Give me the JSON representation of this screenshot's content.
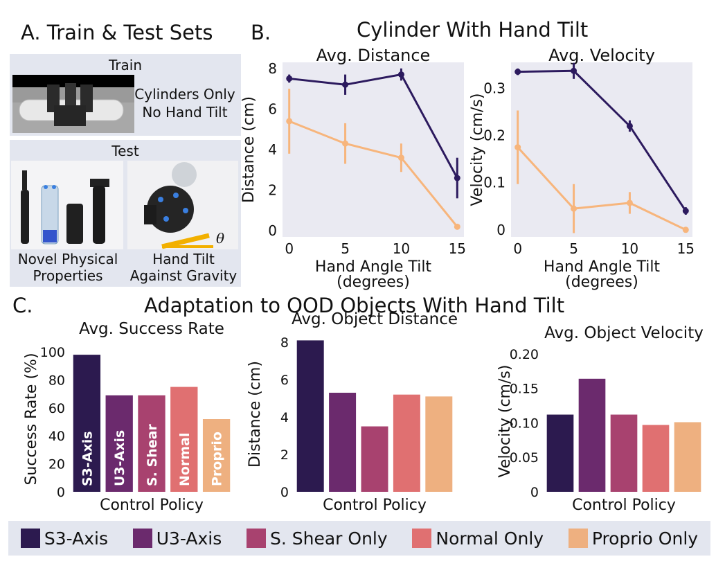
{
  "panelA": {
    "title": "A. Train & Test Sets",
    "train_label": "Train",
    "train_desc_line1": "Cylinders Only",
    "train_desc_line2": "No Hand Tilt",
    "test_label": "Test",
    "novel_line1": "Novel Physical",
    "novel_line2": "Properties",
    "tilt_line1": "Hand Tilt",
    "tilt_line2": "Against Gravity",
    "theta_symbol": "θ"
  },
  "panelB": {
    "label": "B.",
    "title": "Cylinder With Hand Tilt"
  },
  "panelC": {
    "label": "C.",
    "title": "Adaptation to OOD Objects With Hand Tilt"
  },
  "colors": {
    "s3": "#2c1a4f",
    "u3": "#6b2a6d",
    "shear": "#a8426f",
    "normal": "#e07071",
    "proprio": "#eeb080",
    "line_dark": "#2c1a5e",
    "line_light": "#f7b57c",
    "plot_bg": "#eaeaf2"
  },
  "chart_data": [
    {
      "type": "line",
      "title": "Avg. Distance",
      "xlabel": "Hand Angle Tilt\n(degrees)",
      "xlabel_line1": "Hand Angle Tilt",
      "xlabel_line2": "(degrees)",
      "ylabel": "Distance (cm)",
      "x": [
        0,
        5,
        10,
        15
      ],
      "xticks": [
        "0",
        "5",
        "10",
        "15"
      ],
      "yticks": [
        "0",
        "2",
        "4",
        "6",
        "8"
      ],
      "ylim": [
        -0.3,
        8.3
      ],
      "series": [
        {
          "values": [
            7.5,
            7.2,
            7.7,
            2.6
          ],
          "err": [
            0.2,
            0.5,
            0.3,
            1.0
          ],
          "color": "#2c1a5e"
        },
        {
          "values": [
            5.4,
            4.3,
            3.6,
            0.2
          ],
          "err": [
            1.6,
            1.0,
            0.7,
            0.0
          ],
          "color": "#f7b57c"
        }
      ]
    },
    {
      "type": "line",
      "title": "Avg. Velocity",
      "xlabel": "Hand Angle Tilt\n(degrees)",
      "xlabel_line1": "Hand Angle Tilt",
      "xlabel_line2": "(degrees)",
      "ylabel": "Velocity (cm/s)",
      "x": [
        0,
        5,
        10,
        15
      ],
      "xticks": [
        "0",
        "5",
        "10",
        "15"
      ],
      "yticks": [
        "0",
        "0.1",
        "0.2",
        "0.3"
      ],
      "ylim": [
        -0.015,
        0.355
      ],
      "series": [
        {
          "values": [
            0.335,
            0.337,
            0.22,
            0.04
          ],
          "err": [
            0.007,
            0.017,
            0.012,
            0.008
          ],
          "color": "#2c1a5e"
        },
        {
          "values": [
            0.175,
            0.045,
            0.057,
            0.0
          ],
          "err": [
            0.078,
            0.052,
            0.023,
            0.0
          ],
          "color": "#f7b57c"
        }
      ]
    },
    {
      "type": "bar",
      "title": "Avg. Success Rate",
      "xlabel": "Control Policy",
      "ylabel": "Success Rate (%)",
      "categories": [
        "S3-Axis",
        "U3-Axis",
        "S. Shear",
        "Normal",
        "Proprio"
      ],
      "values": [
        98,
        69,
        69,
        75,
        52
      ],
      "yticks": [
        "0",
        "20",
        "40",
        "60",
        "80",
        "100"
      ],
      "ylim": [
        0,
        104
      ]
    },
    {
      "type": "bar",
      "title": "Avg. Object Distance",
      "xlabel": "Control Policy",
      "ylabel": "Distance (cm)",
      "categories": [
        "S3-Axis",
        "U3-Axis",
        "S. Shear",
        "Normal",
        "Proprio"
      ],
      "values": [
        8.1,
        5.3,
        3.5,
        5.2,
        5.1
      ],
      "yticks": [
        "0",
        "2",
        "4",
        "6",
        "8"
      ],
      "ylim": [
        0,
        8.3
      ]
    },
    {
      "type": "bar",
      "title": "Avg. Object Velocity",
      "xlabel": "Control Policy",
      "ylabel": "Velocity (cm/s)",
      "categories": [
        "S3-Axis",
        "U3-Axis",
        "S. Shear",
        "Normal",
        "Proprio"
      ],
      "values": [
        0.112,
        0.164,
        0.112,
        0.097,
        0.101
      ],
      "yticks": [
        "0",
        "0.05",
        "0.10",
        "0.15",
        "0.20"
      ],
      "ylim": [
        0,
        0.205
      ]
    }
  ],
  "legend": [
    {
      "label": "S3-Axis",
      "color": "#2c1a4f"
    },
    {
      "label": "U3-Axis",
      "color": "#6b2a6d"
    },
    {
      "label": "S. Shear Only",
      "color": "#a8426f"
    },
    {
      "label": "Normal Only",
      "color": "#e07071"
    },
    {
      "label": "Proprio Only",
      "color": "#eeb080"
    }
  ]
}
